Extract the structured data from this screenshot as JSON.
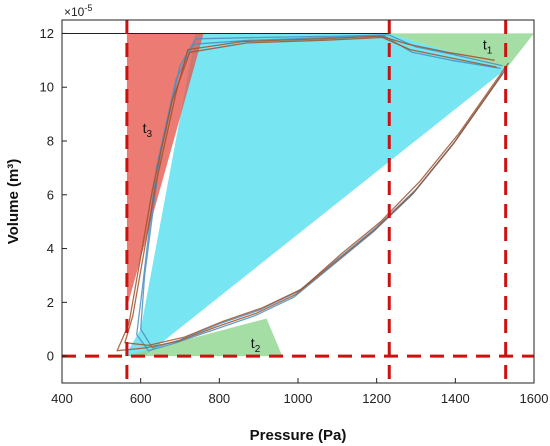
{
  "chart_data": {
    "type": "area",
    "xlabel": "Pressure (Pa)",
    "ylabel": "Volume (m³)",
    "y_multiplier_label": "×10",
    "y_multiplier_exponent": "-5",
    "xlim": [
      400,
      1600
    ],
    "ylim": [
      -1,
      12.5
    ],
    "x_ticks": [
      400,
      600,
      800,
      1000,
      1200,
      1400,
      1600
    ],
    "x_tick_labels": [
      "400",
      "600",
      "800",
      "1000",
      "1200",
      "1400",
      "1600"
    ],
    "y_ticks": [
      0,
      2,
      4,
      6,
      8,
      10,
      12
    ],
    "y_tick_labels": [
      "0",
      "2",
      "4",
      "6",
      "8",
      "10",
      "12"
    ],
    "grid": false,
    "colors": {
      "cycle_area": "#5fe0f0",
      "t1_region": "#8fd68f",
      "t2_region": "#8fd68f",
      "t3_region": "#e65a50",
      "dashed_lines": "#cc1111",
      "curve_blue": "#4a8fbf",
      "curve_brown": "#a0522d"
    },
    "regions": [
      {
        "label": "t",
        "sub": "1",
        "points": [
          [
            1230,
            12
          ],
          [
            1620,
            12
          ],
          [
            1530,
            10.7
          ]
        ],
        "label_at": [
          1470,
          11.4
        ]
      },
      {
        "label": "t",
        "sub": "2",
        "points": [
          [
            560,
            0
          ],
          [
            960,
            0
          ],
          [
            920,
            1.4
          ]
        ],
        "label_at": [
          880,
          0.3
        ]
      },
      {
        "label": "t",
        "sub": "3",
        "points": [
          [
            565,
            1.8
          ],
          [
            565,
            12
          ],
          [
            760,
            12
          ]
        ],
        "label_at": [
          605,
          8.3
        ]
      }
    ],
    "cycle_area": [
      [
        610,
        0
      ],
      [
        1530,
        10.7
      ],
      [
        1230,
        12
      ],
      [
        740,
        12
      ],
      [
        600,
        1
      ],
      [
        560,
        0
      ]
    ],
    "dashed_vertical_x": [
      565,
      1232,
      1528
    ],
    "dashed_horizontal_y": [
      0
    ],
    "top_line": {
      "x": [
        400,
        1230
      ],
      "y": [
        12,
        12
      ]
    },
    "series": [
      {
        "color": "blue",
        "x": [
          1530,
          1400,
          1300,
          1200,
          1100,
          1000,
          900,
          800,
          700,
          630,
          600,
          610,
          650,
          700,
          740,
          900,
          1100,
          1230,
          1300,
          1400,
          1520
        ],
        "y": [
          10.7,
          8.0,
          6.2,
          4.8,
          3.6,
          2.4,
          1.7,
          1.2,
          0.6,
          0.3,
          1.0,
          3.0,
          7.5,
          10.8,
          11.8,
          11.85,
          11.9,
          11.95,
          11.5,
          11.2,
          10.8
        ]
      },
      {
        "color": "blue",
        "x": [
          1525,
          1390,
          1290,
          1190,
          1090,
          990,
          890,
          790,
          690,
          620,
          590,
          605,
          640,
          690,
          735,
          880,
          1080,
          1220,
          1290,
          1390,
          1515
        ],
        "y": [
          10.6,
          7.8,
          6.0,
          4.6,
          3.4,
          2.2,
          1.5,
          1.0,
          0.5,
          0.2,
          0.8,
          2.6,
          7.0,
          10.3,
          11.6,
          11.75,
          11.85,
          11.9,
          11.3,
          11.0,
          10.7
        ]
      },
      {
        "color": "brown",
        "x": [
          1535,
          1410,
          1310,
          1210,
          1110,
          1010,
          910,
          810,
          710,
          620,
          560,
          580,
          640,
          690,
          720,
          860,
          1060,
          1210,
          1280,
          1380,
          1500
        ],
        "y": [
          10.9,
          8.3,
          6.5,
          5.0,
          3.8,
          2.5,
          1.8,
          1.3,
          0.7,
          0.4,
          0.5,
          1.5,
          6.5,
          9.8,
          11.4,
          11.7,
          11.8,
          11.9,
          11.6,
          11.3,
          11.0
        ]
      },
      {
        "color": "brown",
        "x": [
          1520,
          1395,
          1295,
          1195,
          1095,
          995,
          895,
          795,
          695,
          610,
          540,
          570,
          630,
          680,
          725,
          870,
          1070,
          1215,
          1285,
          1385,
          1505
        ],
        "y": [
          10.5,
          7.9,
          6.1,
          4.7,
          3.5,
          2.3,
          1.6,
          1.1,
          0.55,
          0.3,
          0.2,
          1.2,
          6.2,
          9.5,
          11.3,
          11.65,
          11.75,
          11.85,
          11.4,
          11.1,
          10.75
        ]
      }
    ]
  }
}
